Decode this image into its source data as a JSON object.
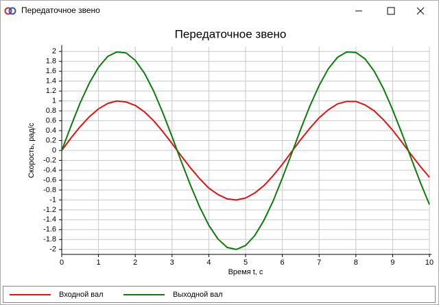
{
  "window_title": "Передаточное звено",
  "chart_data": {
    "type": "line",
    "title": "Передаточное звено",
    "x_label": "Время t, с",
    "y_label": "Скорость, рад/с",
    "x": [
      0,
      0.25,
      0.5,
      0.75,
      1,
      1.25,
      1.5,
      1.75,
      2,
      2.25,
      2.5,
      2.75,
      3,
      3.25,
      3.5,
      3.75,
      4,
      4.25,
      4.5,
      4.75,
      5,
      5.25,
      5.5,
      5.75,
      6,
      6.25,
      6.5,
      6.75,
      7,
      7.25,
      7.5,
      7.75,
      8,
      8.25,
      8.5,
      8.75,
      9,
      9.25,
      9.5,
      9.75,
      10
    ],
    "series": [
      {
        "name": "Входной вал",
        "color": "#e31010",
        "values": [
          0,
          0.25,
          0.48,
          0.68,
          0.84,
          0.95,
          1,
          0.98,
          0.91,
          0.78,
          0.6,
          0.38,
          0.14,
          -0.11,
          -0.35,
          -0.57,
          -0.76,
          -0.89,
          -0.98,
          -1,
          -0.96,
          -0.86,
          -0.71,
          -0.51,
          -0.28,
          -0.03,
          0.22,
          0.45,
          0.66,
          0.82,
          0.94,
          0.99,
          0.99,
          0.92,
          0.8,
          0.62,
          0.41,
          0.17,
          -0.08,
          -0.32,
          -0.54
        ]
      },
      {
        "name": "Выходной вал",
        "color": "#0a7a0a",
        "values": [
          0,
          0.49,
          0.96,
          1.36,
          1.68,
          1.9,
          1.99,
          1.97,
          1.82,
          1.56,
          1.2,
          0.76,
          0.28,
          -0.22,
          -0.7,
          -1.14,
          -1.51,
          -1.79,
          -1.96,
          -2,
          -1.92,
          -1.72,
          -1.41,
          -1.02,
          -0.56,
          -0.07,
          0.43,
          0.9,
          1.31,
          1.65,
          1.88,
          1.99,
          1.98,
          1.85,
          1.6,
          1.25,
          0.82,
          0.35,
          -0.15,
          -0.64,
          -1.09
        ]
      }
    ],
    "xlim": [
      0,
      10
    ],
    "xticks": [
      0,
      1,
      2,
      3,
      4,
      5,
      6,
      7,
      8,
      9,
      10
    ],
    "ylim": [
      -2.1,
      2.1
    ],
    "yticks": [
      2,
      1.8,
      1.6,
      1.4,
      1.2,
      1,
      0.8,
      0.6,
      0.4,
      0.2,
      0,
      -0.2,
      -0.4,
      -0.6,
      -0.8,
      -1,
      -1.2,
      -1.4,
      -1.6,
      -1.8,
      -2
    ],
    "grid": true,
    "legend": "bottom"
  }
}
